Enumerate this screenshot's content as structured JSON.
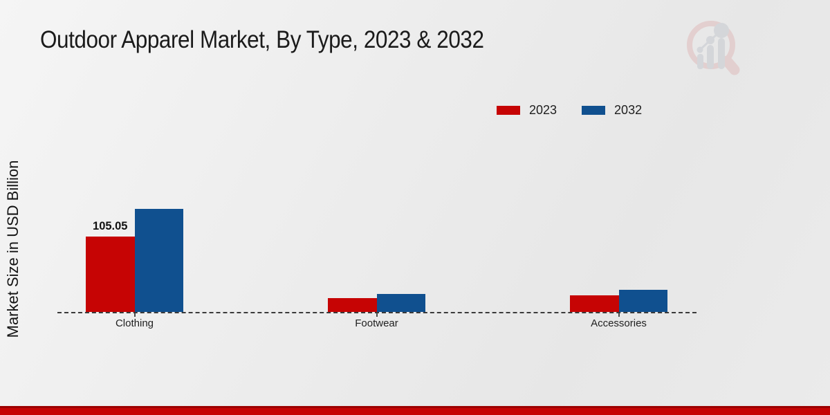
{
  "header": {
    "title": "Outdoor Apparel Market, By Type, 2023 & 2032"
  },
  "chart_data": {
    "type": "bar",
    "title": "Outdoor Apparel Market, By Type, 2023 & 2032",
    "xlabel": "",
    "ylabel": "Market Size in USD Billion",
    "categories": [
      "Clothing",
      "Footwear",
      "Accessories"
    ],
    "series": [
      {
        "name": "2023",
        "color": "#c60404",
        "values": [
          105.05,
          19.3,
          23.1
        ]
      },
      {
        "name": "2032",
        "color": "#10508f",
        "values": [
          143.6,
          25.2,
          30.8
        ]
      }
    ],
    "annotations": [
      {
        "category_index": 0,
        "series_index": 0,
        "text": "105.05"
      }
    ],
    "ylim": [
      0,
      160
    ],
    "grid": false,
    "baseline_style": "dashed",
    "legend_position": "top-right"
  },
  "branding": {
    "logo_icon": "magnifier-bar-chart-icon",
    "logo_ring_color": "#dfbcbc",
    "logo_bars_color": "#c5c9cf",
    "footer_bar_color": "#c50303",
    "footer_bar_edge_color": "#9c0101"
  }
}
